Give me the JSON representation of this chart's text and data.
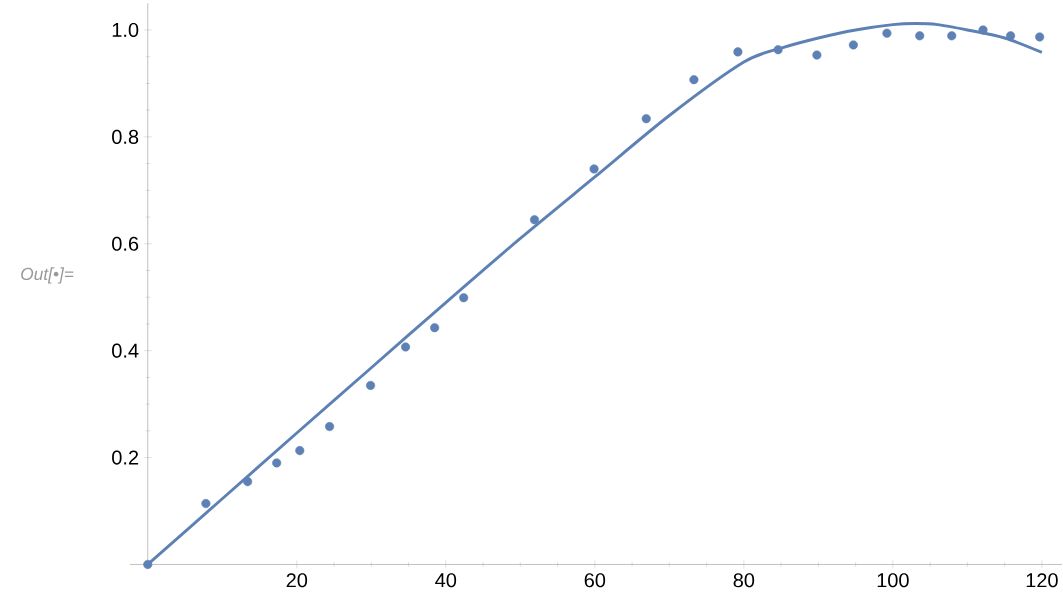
{
  "chart_data": {
    "type": "scatter",
    "series": [
      {
        "color": "#5e81b5",
        "marker": "circle",
        "x": [
          0,
          7.8,
          13.4,
          17.3,
          20.4,
          24.4,
          29.9,
          34.6,
          38.5,
          42.4,
          51.9,
          59.9,
          66.9,
          73.3,
          79.2,
          84.6,
          89.8,
          94.7,
          99.2,
          103.6,
          107.9,
          112.1,
          115.8,
          119.7
        ],
        "values": [
          0,
          0.114,
          0.155,
          0.19,
          0.213,
          0.258,
          0.335,
          0.407,
          0.443,
          0.499,
          0.645,
          0.74,
          0.834,
          0.907,
          0.959,
          0.963,
          0.953,
          0.972,
          0.994,
          0.989,
          0.989,
          1.0,
          0.989,
          0.987
        ]
      },
      {
        "type": "line",
        "color": "#5e81b5",
        "marker": "none",
        "x": [
          0,
          10,
          20,
          30,
          40,
          50,
          60,
          70,
          80,
          85,
          90,
          95,
          100,
          103,
          106,
          110,
          115,
          120
        ],
        "values": [
          0,
          0.123,
          0.246,
          0.368,
          0.49,
          0.61,
          0.725,
          0.84,
          0.94,
          0.966,
          0.985,
          1.0,
          1.01,
          1.012,
          1.01,
          1.0,
          0.985,
          0.958
        ]
      }
    ],
    "xlim": [
      -2.4,
      122.7
    ],
    "ylim": [
      0,
      1.05
    ],
    "xticks": [
      20,
      40,
      60,
      80,
      100,
      120
    ],
    "yticks": [
      0.2,
      0.4,
      0.6,
      0.8,
      {
        "value": 1,
        "label": "1.0"
      }
    ],
    "annotations": [
      "Out[•]="
    ]
  }
}
